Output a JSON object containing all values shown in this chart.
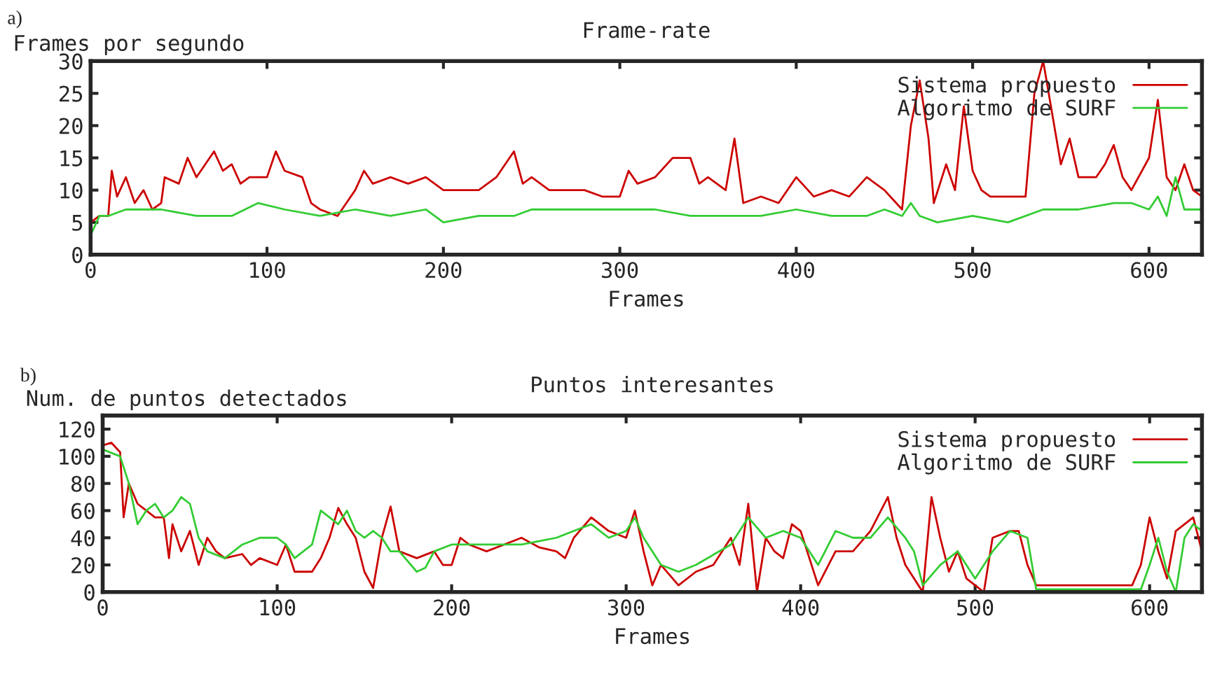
{
  "chart_data": [
    {
      "type": "line",
      "title": "Frame-rate",
      "ylabel": "Frames por segundo",
      "xlabel": "Frames",
      "annotations": [
        "a)"
      ],
      "xlim": [
        0,
        630
      ],
      "xticks": [
        0,
        100,
        200,
        300,
        400,
        500,
        600
      ],
      "ylim": [
        0,
        30
      ],
      "yticks": [
        0,
        5,
        10,
        15,
        20,
        25,
        30
      ],
      "legend": "top right",
      "grid": false,
      "series": [
        {
          "name": "Sistema propuesto",
          "color": "#cc0000",
          "x": [
            0,
            5,
            10,
            12,
            15,
            20,
            25,
            30,
            35,
            40,
            42,
            50,
            55,
            60,
            70,
            75,
            80,
            85,
            90,
            95,
            100,
            105,
            110,
            120,
            125,
            130,
            140,
            145,
            150,
            155,
            160,
            170,
            180,
            190,
            200,
            210,
            220,
            230,
            240,
            245,
            250,
            260,
            270,
            280,
            290,
            300,
            305,
            310,
            320,
            330,
            340,
            345,
            350,
            360,
            365,
            370,
            380,
            390,
            400,
            410,
            420,
            430,
            440,
            450,
            460,
            465,
            470,
            475,
            478,
            485,
            490,
            495,
            500,
            505,
            510,
            520,
            530,
            535,
            540,
            545,
            550,
            555,
            560,
            570,
            575,
            580,
            585,
            590,
            600,
            605,
            610,
            615,
            620,
            625,
            630
          ],
          "values": [
            5,
            6,
            6,
            13,
            9,
            12,
            8,
            10,
            7,
            8,
            12,
            11,
            15,
            12,
            16,
            13,
            14,
            11,
            12,
            12,
            12,
            16,
            13,
            12,
            8,
            7,
            6,
            8,
            10,
            13,
            11,
            12,
            11,
            12,
            10,
            10,
            10,
            12,
            16,
            11,
            12,
            10,
            10,
            10,
            9,
            9,
            13,
            11,
            12,
            15,
            15,
            11,
            12,
            10,
            18,
            8,
            9,
            8,
            12,
            9,
            10,
            9,
            12,
            10,
            7,
            20,
            27,
            18,
            8,
            14,
            10,
            23,
            13,
            10,
            9,
            9,
            9,
            25,
            30,
            22,
            14,
            18,
            12,
            12,
            14,
            17,
            12,
            10,
            15,
            24,
            12,
            10,
            14,
            10,
            9
          ]
        },
        {
          "name": "Algoritmo de SURF",
          "color": "#33cc33",
          "x": [
            0,
            5,
            10,
            20,
            40,
            60,
            80,
            95,
            110,
            130,
            150,
            170,
            190,
            200,
            220,
            240,
            250,
            280,
            300,
            320,
            340,
            360,
            380,
            400,
            420,
            440,
            450,
            460,
            465,
            470,
            480,
            500,
            520,
            540,
            560,
            580,
            590,
            600,
            605,
            610,
            615,
            620,
            630
          ],
          "values": [
            3,
            6,
            6,
            7,
            7,
            6,
            6,
            8,
            7,
            6,
            7,
            6,
            7,
            5,
            6,
            6,
            7,
            7,
            7,
            7,
            6,
            6,
            6,
            7,
            6,
            6,
            7,
            6,
            8,
            6,
            5,
            6,
            5,
            7,
            7,
            8,
            8,
            7,
            9,
            6,
            12,
            7,
            7
          ]
        }
      ]
    },
    {
      "type": "line",
      "title": "Puntos interesantes",
      "ylabel": "Num. de puntos detectados",
      "xlabel": "Frames",
      "annotations": [
        "b)"
      ],
      "xlim": [
        0,
        630
      ],
      "xticks": [
        0,
        100,
        200,
        300,
        400,
        500,
        600
      ],
      "ylim": [
        0,
        130
      ],
      "yticks": [
        0,
        20,
        40,
        60,
        80,
        100,
        120
      ],
      "legend": "top right",
      "grid": false,
      "series": [
        {
          "name": "Sistema propuesto",
          "color": "#cc0000",
          "x": [
            0,
            5,
            10,
            12,
            15,
            20,
            25,
            30,
            35,
            38,
            40,
            45,
            50,
            55,
            60,
            65,
            70,
            80,
            85,
            90,
            100,
            105,
            110,
            120,
            125,
            130,
            135,
            140,
            145,
            150,
            155,
            160,
            165,
            170,
            180,
            190,
            195,
            200,
            205,
            210,
            220,
            230,
            240,
            250,
            260,
            265,
            270,
            280,
            290,
            300,
            305,
            310,
            315,
            320,
            330,
            340,
            350,
            360,
            365,
            370,
            375,
            380,
            385,
            390,
            395,
            400,
            410,
            420,
            430,
            440,
            450,
            455,
            460,
            470,
            475,
            480,
            485,
            490,
            495,
            500,
            505,
            510,
            520,
            525,
            530,
            535,
            590,
            595,
            600,
            605,
            610,
            615,
            620,
            625,
            630
          ],
          "values": [
            108,
            110,
            103,
            55,
            80,
            65,
            60,
            55,
            55,
            25,
            50,
            30,
            45,
            20,
            40,
            30,
            25,
            28,
            20,
            25,
            20,
            35,
            15,
            15,
            25,
            40,
            62,
            50,
            40,
            15,
            3,
            40,
            63,
            30,
            25,
            30,
            20,
            20,
            40,
            35,
            30,
            35,
            40,
            33,
            30,
            25,
            40,
            55,
            45,
            40,
            60,
            30,
            5,
            20,
            5,
            15,
            20,
            40,
            20,
            65,
            0,
            40,
            30,
            25,
            50,
            45,
            5,
            30,
            30,
            45,
            70,
            40,
            20,
            0,
            70,
            40,
            15,
            30,
            10,
            5,
            0,
            40,
            45,
            45,
            20,
            5,
            5,
            20,
            55,
            30,
            10,
            45,
            50,
            55,
            30
          ]
        },
        {
          "name": "Algoritmo de SURF",
          "color": "#33cc33",
          "x": [
            0,
            10,
            15,
            20,
            25,
            30,
            35,
            40,
            45,
            50,
            55,
            60,
            70,
            80,
            90,
            100,
            105,
            110,
            120,
            125,
            130,
            135,
            140,
            145,
            150,
            155,
            160,
            165,
            170,
            180,
            185,
            190,
            200,
            220,
            240,
            260,
            270,
            280,
            290,
            300,
            305,
            310,
            320,
            330,
            340,
            360,
            370,
            380,
            390,
            400,
            410,
            420,
            430,
            440,
            450,
            460,
            465,
            470,
            480,
            490,
            500,
            510,
            520,
            530,
            535,
            595,
            600,
            605,
            610,
            615,
            620,
            625,
            630
          ],
          "values": [
            105,
            100,
            80,
            50,
            60,
            65,
            55,
            60,
            70,
            65,
            40,
            30,
            25,
            35,
            40,
            40,
            35,
            25,
            35,
            60,
            55,
            50,
            60,
            45,
            40,
            45,
            40,
            30,
            30,
            15,
            18,
            30,
            35,
            35,
            35,
            40,
            45,
            50,
            40,
            45,
            55,
            40,
            20,
            15,
            20,
            35,
            55,
            40,
            45,
            40,
            20,
            45,
            40,
            40,
            55,
            40,
            30,
            5,
            20,
            30,
            10,
            30,
            45,
            40,
            2,
            2,
            20,
            40,
            15,
            0,
            40,
            50,
            45
          ]
        }
      ]
    }
  ]
}
